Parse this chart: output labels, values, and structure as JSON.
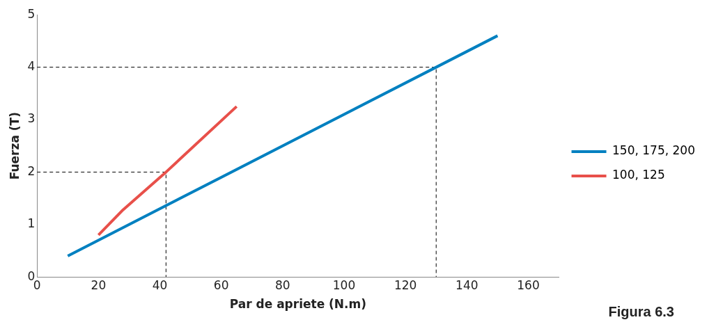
{
  "chart_data": {
    "type": "line",
    "xlabel": "Par de apriete (N.m)",
    "ylabel": "Fuerza (T)",
    "xlim": [
      0,
      170
    ],
    "xticks": [
      0,
      20,
      40,
      60,
      80,
      100,
      120,
      140,
      160
    ],
    "ylim": [
      0,
      5
    ],
    "yticks": [
      0,
      1,
      2,
      3,
      4,
      5
    ],
    "grid": false,
    "legend": "right",
    "marker": "none",
    "annotations": [
      "Figura 6.3"
    ],
    "series": [
      {
        "name": "150, 175, 200",
        "color": "#0080c0",
        "x": [
          10,
          130,
          150
        ],
        "values": [
          0.4,
          4.0,
          4.6
        ]
      },
      {
        "name": "100, 125",
        "color": "#e8504a",
        "x": [
          20,
          28,
          42,
          65
        ],
        "values": [
          0.8,
          1.28,
          2.0,
          3.25
        ]
      },
      {
        "color": "#000000",
        "line_style": "dashed",
        "x": [
          0,
          42,
          42
        ],
        "values": [
          2,
          2,
          0
        ]
      },
      {
        "color": "#000000",
        "line_style": "dashed",
        "x": [
          0,
          130,
          130
        ],
        "values": [
          4,
          4,
          0
        ]
      }
    ]
  }
}
